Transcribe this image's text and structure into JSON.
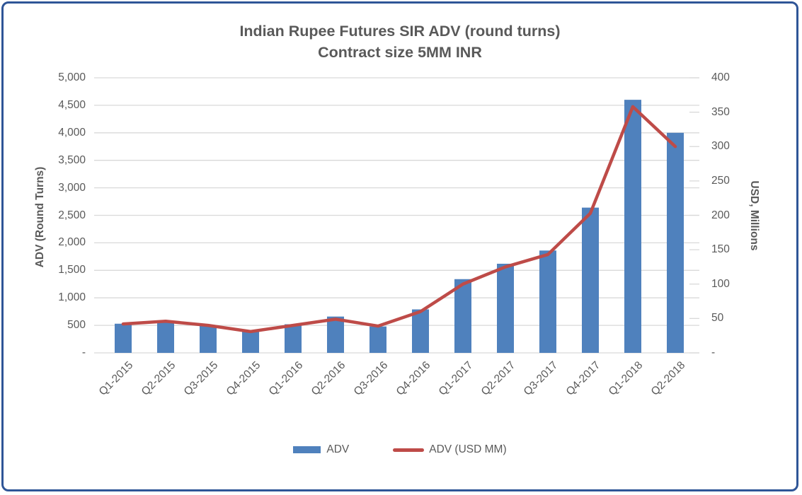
{
  "chart_data": {
    "type": "bar",
    "combo": "bar+line, dual y-axes",
    "title": "Indian Rupee Futures SIR ADV (round turns)",
    "subtitle": "Contract size 5MM INR",
    "categories": [
      "Q1-2015",
      "Q2-2015",
      "Q3-2015",
      "Q4-2015",
      "Q1-2016",
      "Q2-2016",
      "Q3-2016",
      "Q4-2016",
      "Q1-2017",
      "Q2-2017",
      "Q3-2017",
      "Q4-2017",
      "Q1-2018",
      "Q2-2018"
    ],
    "series": [
      {
        "name": "ADV",
        "type": "bar",
        "axis": "left",
        "color": "#4F81BD",
        "values": [
          530,
          560,
          500,
          390,
          520,
          660,
          480,
          790,
          1340,
          1620,
          1860,
          2640,
          4600,
          4000
        ]
      },
      {
        "name": "ADV (USD MM)",
        "type": "line",
        "axis": "right",
        "color": "#BE4B48",
        "values": [
          42,
          46,
          40,
          31,
          40,
          49,
          39,
          60,
          100,
          125,
          143,
          203,
          358,
          300
        ]
      }
    ],
    "left_axis": {
      "title": "ADV (Round Turns)",
      "min": 0,
      "max": 5000,
      "step": 500,
      "tick_labels": [
        "5,000",
        "4,500",
        "4,000",
        "3,500",
        "3,000",
        "2,500",
        "2,000",
        "1,500",
        "1,000",
        "500",
        "-"
      ]
    },
    "right_axis": {
      "title": "USD, Millions",
      "min": 0,
      "max": 400,
      "step": 50,
      "tick_labels": [
        "400",
        "350",
        "300",
        "250",
        "200",
        "150",
        "100",
        "50",
        "-"
      ]
    },
    "legend": {
      "position": "bottom",
      "items": [
        "ADV",
        "ADV (USD MM)"
      ]
    },
    "grid": "horizontal gridlines on",
    "colors": {
      "grid": "#D9D9D9",
      "text": "#595959",
      "frame_border": "#2F5597",
      "background": "#FFFFFF"
    }
  }
}
